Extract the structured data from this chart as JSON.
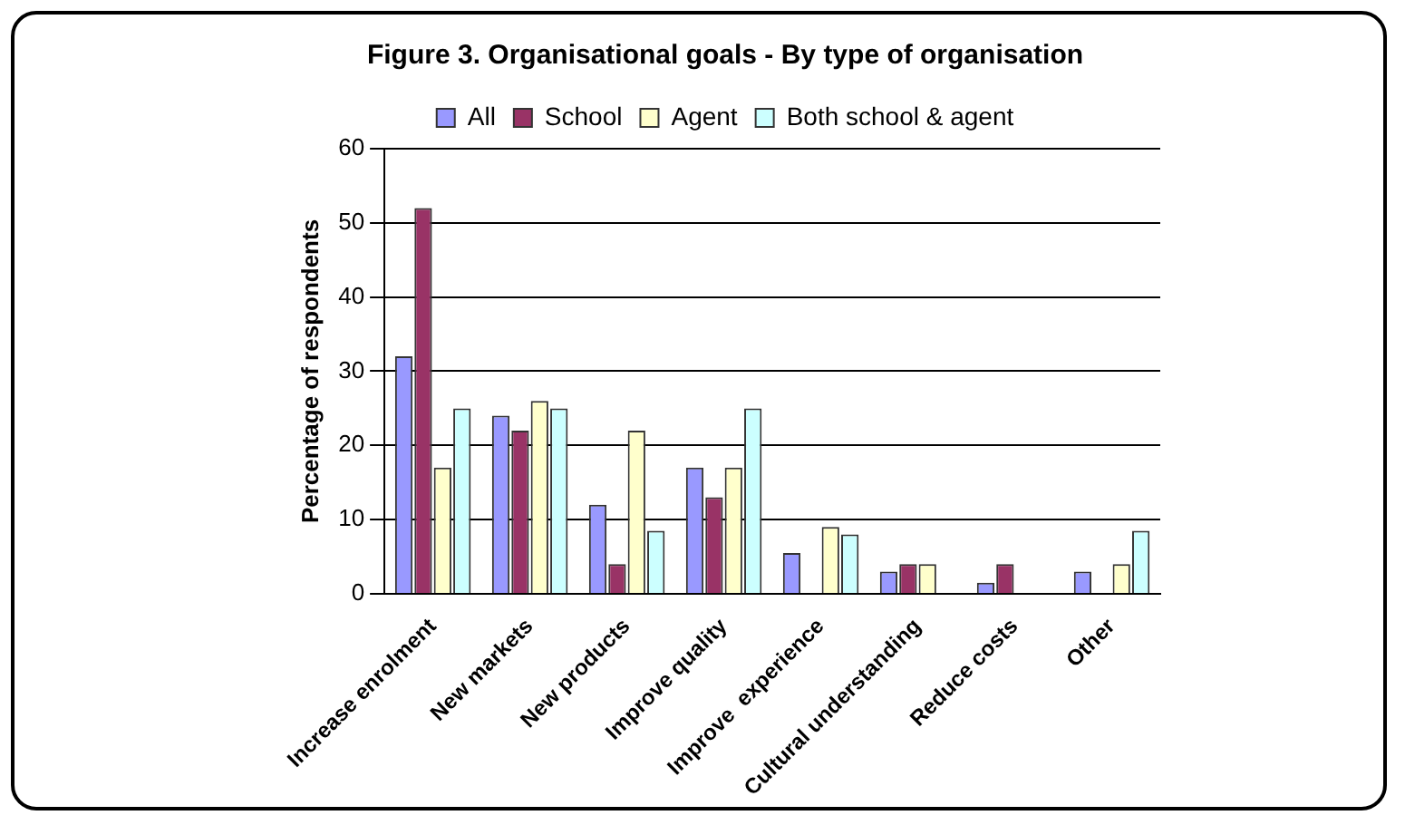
{
  "chart_data": {
    "type": "bar",
    "title": "Figure 3. Organisational goals - By type of organisation",
    "ylabel": "Percentage of respondents",
    "categories": [
      "Increase enrolment",
      "New markets",
      "New products",
      "Improve quality",
      "Improve  experience",
      "Cultural understanding",
      "Reduce costs",
      "Other"
    ],
    "series": [
      {
        "name": "All",
        "color": "#9999ff",
        "values": [
          32,
          24,
          12,
          17,
          5.5,
          3,
          1.5,
          3
        ]
      },
      {
        "name": "School",
        "color": "#993366",
        "values": [
          52,
          22,
          4,
          13,
          0,
          4,
          4,
          0
        ]
      },
      {
        "name": "Agent",
        "color": "#ffffcc",
        "values": [
          17,
          26,
          22,
          17,
          9,
          4,
          0,
          4
        ]
      },
      {
        "name": "Both school & agent",
        "color": "#ccffff",
        "values": [
          25,
          25,
          8.5,
          25,
          8,
          0,
          0,
          8.5
        ]
      }
    ],
    "ylim": [
      0,
      60
    ],
    "yticks": [
      0,
      10,
      20,
      30,
      40,
      50,
      60
    ],
    "grid": "y",
    "legend": "top"
  }
}
